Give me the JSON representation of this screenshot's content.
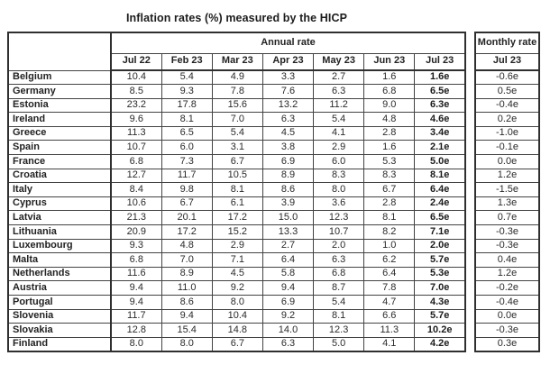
{
  "title": "Inflation rates (%) measured by the HICP",
  "annual": {
    "group_label": "Annual rate",
    "columns": [
      "Jul 22",
      "Feb 23",
      "Mar 23",
      "Apr 23",
      "May 23",
      "Jun 23",
      "Jul 23"
    ]
  },
  "monthly": {
    "group_label": "Monthly rate",
    "column": "Jul 23"
  },
  "rows": [
    {
      "country": "Belgium",
      "annual": [
        "10.4",
        "5.4",
        "4.9",
        "3.3",
        "2.7",
        "1.6",
        "1.6e"
      ],
      "monthly": "-0.6e"
    },
    {
      "country": "Germany",
      "annual": [
        "8.5",
        "9.3",
        "7.8",
        "7.6",
        "6.3",
        "6.8",
        "6.5e"
      ],
      "monthly": "0.5e"
    },
    {
      "country": "Estonia",
      "annual": [
        "23.2",
        "17.8",
        "15.6",
        "13.2",
        "11.2",
        "9.0",
        "6.3e"
      ],
      "monthly": "-0.4e"
    },
    {
      "country": "Ireland",
      "annual": [
        "9.6",
        "8.1",
        "7.0",
        "6.3",
        "5.4",
        "4.8",
        "4.6e"
      ],
      "monthly": "0.2e"
    },
    {
      "country": "Greece",
      "annual": [
        "11.3",
        "6.5",
        "5.4",
        "4.5",
        "4.1",
        "2.8",
        "3.4e"
      ],
      "monthly": "-1.0e"
    },
    {
      "country": "Spain",
      "annual": [
        "10.7",
        "6.0",
        "3.1",
        "3.8",
        "2.9",
        "1.6",
        "2.1e"
      ],
      "monthly": "-0.1e"
    },
    {
      "country": "France",
      "annual": [
        "6.8",
        "7.3",
        "6.7",
        "6.9",
        "6.0",
        "5.3",
        "5.0e"
      ],
      "monthly": "0.0e"
    },
    {
      "country": "Croatia",
      "annual": [
        "12.7",
        "11.7",
        "10.5",
        "8.9",
        "8.3",
        "8.3",
        "8.1e"
      ],
      "monthly": "1.2e"
    },
    {
      "country": "Italy",
      "annual": [
        "8.4",
        "9.8",
        "8.1",
        "8.6",
        "8.0",
        "6.7",
        "6.4e"
      ],
      "monthly": "-1.5e"
    },
    {
      "country": "Cyprus",
      "annual": [
        "10.6",
        "6.7",
        "6.1",
        "3.9",
        "3.6",
        "2.8",
        "2.4e"
      ],
      "monthly": "1.3e"
    },
    {
      "country": "Latvia",
      "annual": [
        "21.3",
        "20.1",
        "17.2",
        "15.0",
        "12.3",
        "8.1",
        "6.5e"
      ],
      "monthly": "0.7e"
    },
    {
      "country": "Lithuania",
      "annual": [
        "20.9",
        "17.2",
        "15.2",
        "13.3",
        "10.7",
        "8.2",
        "7.1e"
      ],
      "monthly": "-0.3e"
    },
    {
      "country": "Luxembourg",
      "annual": [
        "9.3",
        "4.8",
        "2.9",
        "2.7",
        "2.0",
        "1.0",
        "2.0e"
      ],
      "monthly": "-0.3e"
    },
    {
      "country": "Malta",
      "annual": [
        "6.8",
        "7.0",
        "7.1",
        "6.4",
        "6.3",
        "6.2",
        "5.7e"
      ],
      "monthly": "0.4e"
    },
    {
      "country": "Netherlands",
      "annual": [
        "11.6",
        "8.9",
        "4.5",
        "5.8",
        "6.8",
        "6.4",
        "5.3e"
      ],
      "monthly": "1.2e"
    },
    {
      "country": "Austria",
      "annual": [
        "9.4",
        "11.0",
        "9.2",
        "9.4",
        "8.7",
        "7.8",
        "7.0e"
      ],
      "monthly": "-0.2e"
    },
    {
      "country": "Portugal",
      "annual": [
        "9.4",
        "8.6",
        "8.0",
        "6.9",
        "5.4",
        "4.7",
        "4.3e"
      ],
      "monthly": "-0.4e"
    },
    {
      "country": "Slovenia",
      "annual": [
        "11.7",
        "9.4",
        "10.4",
        "9.2",
        "8.1",
        "6.6",
        "5.7e"
      ],
      "monthly": "0.0e"
    },
    {
      "country": "Slovakia",
      "annual": [
        "12.8",
        "15.4",
        "14.8",
        "14.0",
        "12.3",
        "11.3",
        "10.2e"
      ],
      "monthly": "-0.3e"
    },
    {
      "country": "Finland",
      "annual": [
        "8.0",
        "8.0",
        "6.7",
        "6.3",
        "5.0",
        "4.1",
        "4.2e"
      ],
      "monthly": "0.3e"
    }
  ],
  "colors": {
    "border_outer": "#2f2f2f",
    "border_inner": "#434343",
    "text": "#222222",
    "background": "#ffffff"
  }
}
